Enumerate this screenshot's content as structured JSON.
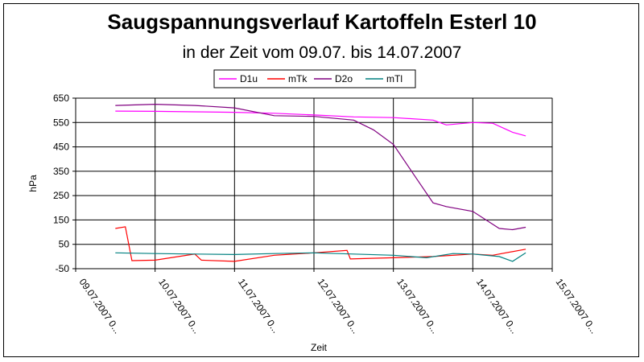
{
  "chart_data": {
    "type": "line",
    "title": "Saugspannungsverlauf Kartoffeln Esterl 10",
    "subtitle": "in der Zeit vom 09.07. bis 14.07.2007",
    "xlabel": "Zeit",
    "ylabel": "hPa",
    "ylim": [
      -50,
      650
    ],
    "yticks": [
      "650",
      "550",
      "450",
      "350",
      "250",
      "150",
      "50",
      "-50"
    ],
    "ytick_values": [
      650,
      550,
      450,
      350,
      250,
      150,
      50,
      -50
    ],
    "xlim": [
      "09.07.2007",
      "15.07.2007"
    ],
    "xticks": [
      "09.07.2007 0...",
      "10.07.2007 0...",
      "11.07.2007 0...",
      "12.07.2007 0...",
      "13.07.2007 0...",
      "14.07.2007 0...",
      "15.07.2007 0..."
    ],
    "grid": true,
    "legend": "top",
    "series": [
      {
        "name": "D1u",
        "color": "#ff00ff",
        "x": [
          "09.07.2007 12:00",
          "10.07.2007 00:00",
          "10.07.2007 12:00",
          "11.07.2007 00:00",
          "11.07.2007 12:00",
          "12.07.2007 00:00",
          "12.07.2007 12:00",
          "13.07.2007 00:00",
          "13.07.2007 12:00",
          "13.07.2007 16:00",
          "14.07.2007 00:00",
          "14.07.2007 06:00",
          "14.07.2007 12:00",
          "14.07.2007 16:00"
        ],
        "values": [
          597,
          596,
          594,
          592,
          588,
          581,
          573,
          570,
          560,
          540,
          550,
          547,
          510,
          495
        ]
      },
      {
        "name": "mTk",
        "color": "#ff0000",
        "x": [
          "09.07.2007 12:00",
          "09.07.2007 15:00",
          "09.07.2007 17:00",
          "10.07.2007 00:00",
          "10.07.2007 12:00",
          "10.07.2007 14:00",
          "11.07.2007 00:00",
          "11.07.2007 12:00",
          "12.07.2007 00:00",
          "12.07.2007 10:00",
          "12.07.2007 11:00",
          "13.07.2007 00:00",
          "13.07.2007 12:00",
          "14.07.2007 00:00",
          "14.07.2007 06:00",
          "14.07.2007 16:00"
        ],
        "values": [
          115,
          122,
          -17,
          -15,
          10,
          -15,
          -20,
          5,
          15,
          25,
          -10,
          -5,
          0,
          10,
          5,
          30
        ]
      },
      {
        "name": "D2o",
        "color": "#800080",
        "x": [
          "09.07.2007 12:00",
          "10.07.2007 00:00",
          "10.07.2007 12:00",
          "11.07.2007 00:00",
          "11.07.2007 12:00",
          "12.07.2007 00:00",
          "12.07.2007 12:00",
          "12.07.2007 18:00",
          "13.07.2007 00:00",
          "13.07.2007 06:00",
          "13.07.2007 12:00",
          "13.07.2007 16:00",
          "14.07.2007 00:00",
          "14.07.2007 08:00",
          "14.07.2007 12:00",
          "14.07.2007 16:00"
        ],
        "values": [
          620,
          625,
          620,
          610,
          578,
          575,
          560,
          520,
          460,
          340,
          220,
          205,
          185,
          115,
          110,
          120
        ]
      },
      {
        "name": "mTl",
        "color": "#008080",
        "x": [
          "09.07.2007 12:00",
          "10.07.2007 00:00",
          "10.07.2007 12:00",
          "11.07.2007 00:00",
          "11.07.2007 12:00",
          "12.07.2007 00:00",
          "12.07.2007 12:00",
          "13.07.2007 00:00",
          "13.07.2007 10:00",
          "13.07.2007 18:00",
          "14.07.2007 00:00",
          "14.07.2007 08:00",
          "14.07.2007 12:00",
          "14.07.2007 16:00"
        ],
        "values": [
          15,
          12,
          10,
          8,
          12,
          15,
          10,
          5,
          -5,
          12,
          10,
          0,
          -20,
          15
        ]
      }
    ]
  }
}
